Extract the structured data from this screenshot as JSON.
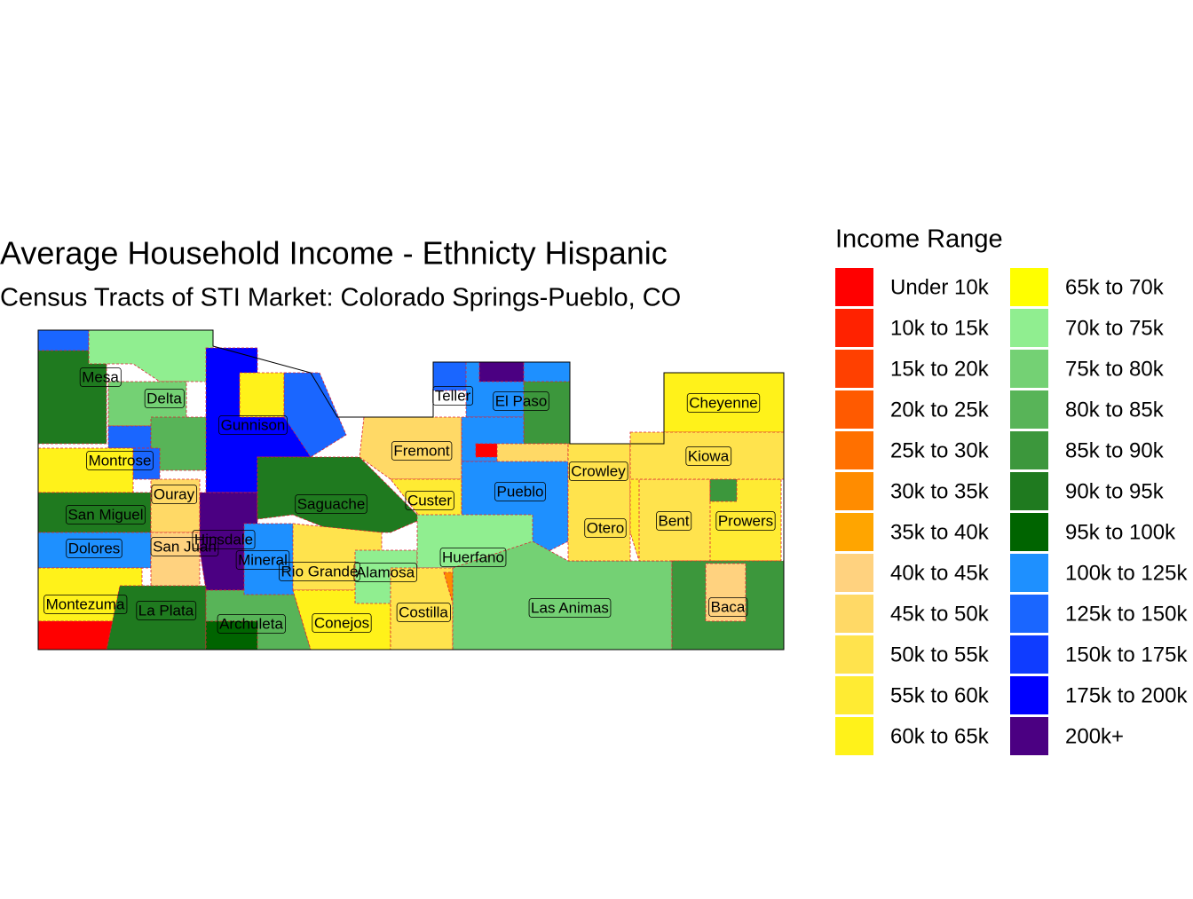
{
  "title": "Average Household Income - Ethnicty Hispanic",
  "subtitle": "Census Tracts of STI Market: Colorado Springs-Pueblo, CO",
  "legend": {
    "title": "Income Range",
    "items": [
      {
        "label": "Under 10k",
        "color": "#ff0000"
      },
      {
        "label": "10k to 15k",
        "color": "#ff2200"
      },
      {
        "label": "15k to 20k",
        "color": "#ff4000"
      },
      {
        "label": "20k to 25k",
        "color": "#ff5a00"
      },
      {
        "label": "25k to 30k",
        "color": "#ff7000"
      },
      {
        "label": "30k to 35k",
        "color": "#ff8c00"
      },
      {
        "label": "35k to 40k",
        "color": "#ffa500"
      },
      {
        "label": "40k to 45k",
        "color": "#ffd27f"
      },
      {
        "label": "45k to 50k",
        "color": "#ffd966"
      },
      {
        "label": "50k to 55k",
        "color": "#ffe34d"
      },
      {
        "label": "55k to 60k",
        "color": "#ffeb33"
      },
      {
        "label": "60k to 65k",
        "color": "#fff21a"
      },
      {
        "label": "65k to 70k",
        "color": "#ffff00"
      },
      {
        "label": "70k to 75k",
        "color": "#90ee90"
      },
      {
        "label": "75k to 80k",
        "color": "#74d174"
      },
      {
        "label": "80k to 85k",
        "color": "#58b458"
      },
      {
        "label": "85k to 90k",
        "color": "#3c973c"
      },
      {
        "label": "90k to 95k",
        "color": "#1f7a1f"
      },
      {
        "label": "95k to 100k",
        "color": "#006400"
      },
      {
        "label": "100k to 125k",
        "color": "#1e90ff"
      },
      {
        "label": "125k to 150k",
        "color": "#1a66ff"
      },
      {
        "label": "150k to 175k",
        "color": "#0f3cff"
      },
      {
        "label": "175k to 200k",
        "color": "#0000ff"
      },
      {
        "label": "200k+",
        "color": "#4b0082"
      }
    ]
  },
  "counties": [
    "Mesa",
    "Delta",
    "Gunnison",
    "Teller",
    "El Paso",
    "Cheyenne",
    "Montrose",
    "Fremont",
    "Kiowa",
    "Crowley",
    "Ouray",
    "Saguache",
    "Custer",
    "Pueblo",
    "San Miguel",
    "Otero",
    "Bent",
    "Prowers",
    "Hinsdale",
    "Dolores",
    "San Juan",
    "Mineral",
    "Rio Grande",
    "Alamosa",
    "Huerfano",
    "Montezuma",
    "La Plata",
    "Las Animas",
    "Costilla",
    "Baca",
    "Archuleta",
    "Conejos"
  ]
}
